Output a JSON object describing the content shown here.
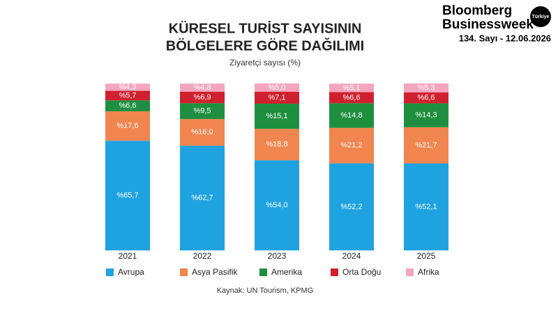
{
  "brand": {
    "line1": "Bloomberg",
    "line2": "Businessweek",
    "badge": "Türkiye",
    "issue": "134. Sayı - 12.06.2026"
  },
  "chart_data": {
    "type": "bar",
    "stacked": true,
    "title": [
      "KÜRESEL TURİST SAYISININ",
      "BÖLGELERE GÖRE DAĞILIMI"
    ],
    "subtitle": "Ziyaretçi sayısı (%)",
    "source": "Kaynak: UN Tourism, KPMG",
    "categories": [
      "2021",
      "2022",
      "2023",
      "2024",
      "2025"
    ],
    "series": [
      {
        "name": "Avrupa",
        "color": "#1fa3e0",
        "values": [
          65.7,
          62.7,
          54.0,
          52.2,
          52.1
        ],
        "value_labels": [
          "%65,7",
          "%62,7",
          "%54,0",
          "%52,2",
          "%52,1"
        ]
      },
      {
        "name": "Asya Pasifik",
        "color": "#f08550",
        "values": [
          17.6,
          16.0,
          18.8,
          21.2,
          21.7
        ],
        "value_labels": [
          "%17,6",
          "%16,0",
          "%18,8",
          "%21,2",
          "%21,7"
        ]
      },
      {
        "name": "Amerika",
        "color": "#1e8f3e",
        "values": [
          6.6,
          9.5,
          15.1,
          14.8,
          14.3
        ],
        "value_labels": [
          "%6,6",
          "%9,5",
          "%15,1",
          "%14,8",
          "%14,3"
        ]
      },
      {
        "name": "Orta Doğu",
        "color": "#d0202e",
        "values": [
          5.7,
          6.9,
          7.1,
          6.6,
          6.6
        ],
        "value_labels": [
          "%5,7",
          "%6,9",
          "%7,1",
          "%6,6",
          "%6,6"
        ]
      },
      {
        "name": "Afrika",
        "color": "#f4a6be",
        "values": [
          4.3,
          4.8,
          5.0,
          5.1,
          5.3
        ],
        "value_labels": [
          "%4,3",
          "%4,8",
          "%5,0",
          "%5,1",
          "%5,3"
        ]
      }
    ]
  }
}
